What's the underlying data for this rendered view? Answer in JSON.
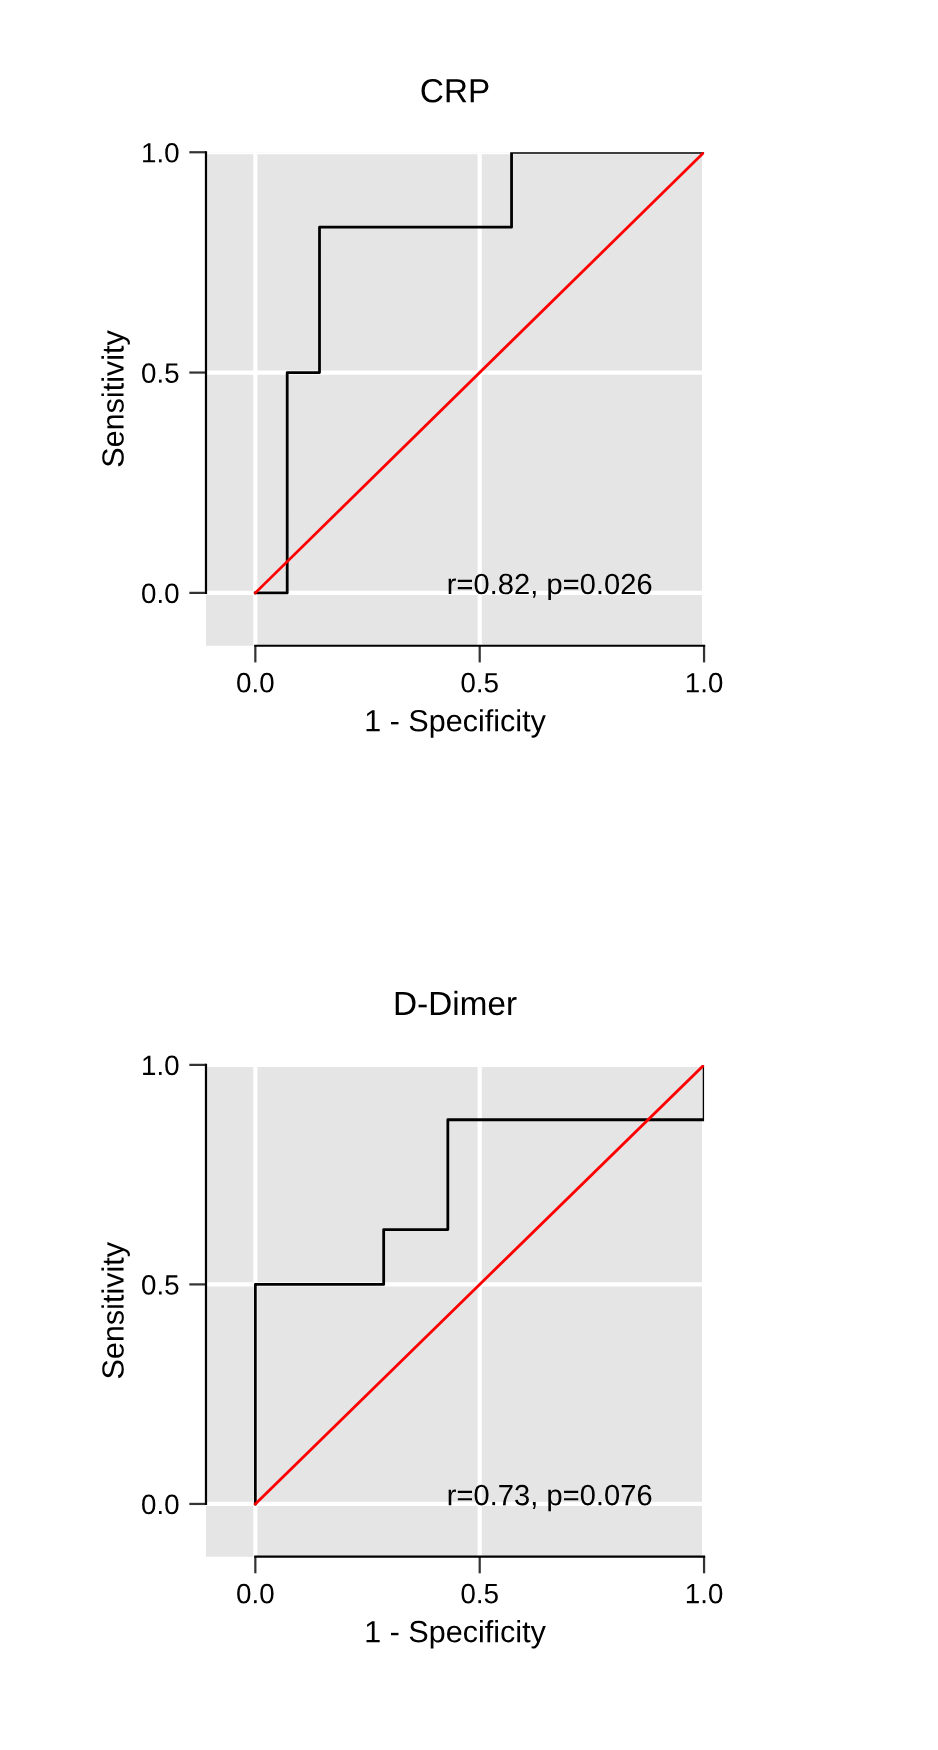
{
  "chart_data": [
    {
      "type": "line",
      "title": "CRP",
      "xlabel": "1 - Specificity",
      "ylabel": "Sensitivity",
      "xlim": [
        -0.11,
        1.0
      ],
      "ylim": [
        -0.12,
        1.0
      ],
      "xticks": [
        {
          "value": 0,
          "label": "0.0"
        },
        {
          "value": 0.5,
          "label": "0.5"
        },
        {
          "value": 1,
          "label": "1.0"
        }
      ],
      "yticks": [
        {
          "value": 0,
          "label": "0.0"
        },
        {
          "value": 0.5,
          "label": "0.5"
        },
        {
          "value": 1,
          "label": "1.0"
        }
      ],
      "grid": true,
      "marker": "none",
      "annotations": [
        "r=0.82, p=0.026"
      ],
      "series": [
        {
          "type": "step",
          "color": "#000000",
          "x": [
            0,
            0.071,
            0.143,
            0.571,
            1.0
          ],
          "values": [
            0,
            0.5,
            0.83,
            1.0,
            1.0
          ]
        },
        {
          "type": "line",
          "color": "#ff0000",
          "x": [
            0,
            1
          ],
          "values": [
            0,
            1
          ]
        }
      ]
    },
    {
      "type": "line",
      "title": "D-Dimer",
      "xlabel": "1 - Specificity",
      "ylabel": "Sensitivity",
      "xlim": [
        -0.11,
        1.0
      ],
      "ylim": [
        -0.12,
        1.0
      ],
      "xticks": [
        {
          "value": 0,
          "label": "0.0"
        },
        {
          "value": 0.5,
          "label": "0.5"
        },
        {
          "value": 1,
          "label": "1.0"
        }
      ],
      "yticks": [
        {
          "value": 0,
          "label": "0.0"
        },
        {
          "value": 0.5,
          "label": "0.5"
        },
        {
          "value": 1,
          "label": "1.0"
        }
      ],
      "grid": true,
      "marker": "none",
      "annotations": [
        "r=0.73, p=0.076"
      ],
      "series": [
        {
          "type": "step",
          "color": "#000000",
          "x": [
            0,
            0,
            0.286,
            0.429,
            1.0,
            1.0
          ],
          "values": [
            0,
            0.5,
            0.625,
            0.875,
            0.875,
            1.0
          ]
        },
        {
          "type": "line",
          "color": "#ff0000",
          "x": [
            0,
            1
          ],
          "values": [
            0,
            1
          ]
        }
      ]
    }
  ]
}
